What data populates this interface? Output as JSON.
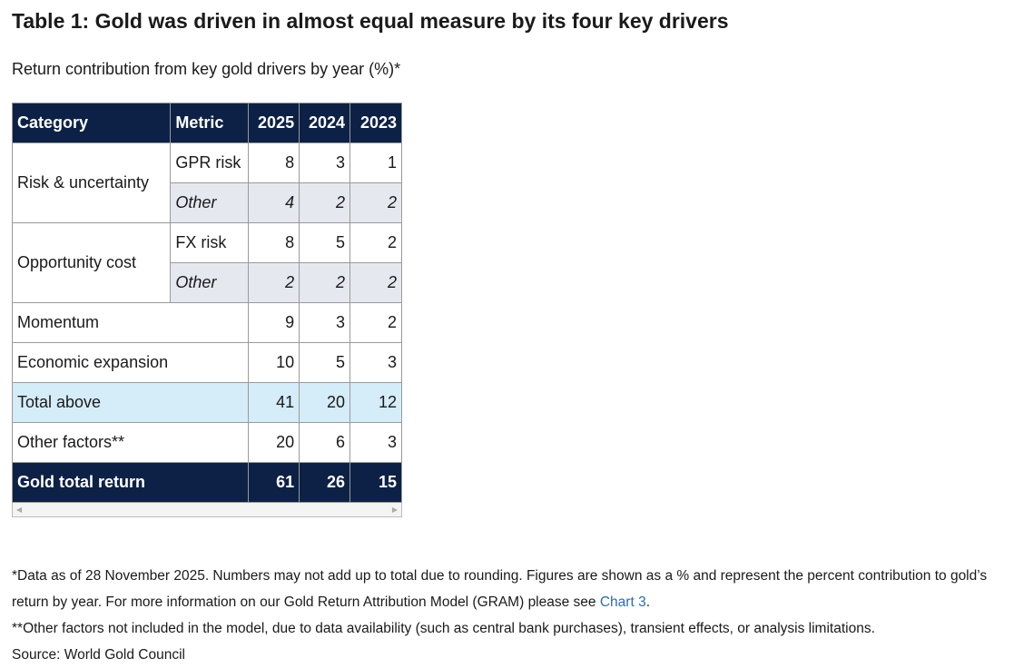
{
  "header": {
    "title": "Table 1: Gold was driven in almost equal measure by its four key drivers",
    "subtitle": "Return contribution from key gold drivers by year (%)*"
  },
  "table": {
    "columns": [
      "Category",
      "Metric",
      "2025",
      "2024",
      "2023"
    ],
    "rows": [
      {
        "category": "Risk & uncertainty",
        "items": [
          {
            "metric": "GPR risk",
            "values": [
              8,
              3,
              1
            ]
          },
          {
            "metric": "Other",
            "values": [
              4,
              2,
              2
            ]
          }
        ]
      },
      {
        "category": "Opportunity cost",
        "items": [
          {
            "metric": "FX risk",
            "values": [
              8,
              5,
              2
            ]
          },
          {
            "metric": "Other",
            "values": [
              2,
              2,
              2
            ]
          }
        ]
      },
      {
        "category": "Momentum",
        "values": [
          9,
          3,
          2
        ]
      },
      {
        "category": "Economic expansion",
        "values": [
          10,
          5,
          3
        ]
      },
      {
        "category": "Total above",
        "values": [
          41,
          20,
          12
        ]
      },
      {
        "category": "Other factors**",
        "values": [
          20,
          6,
          3
        ]
      },
      {
        "category": "Gold total return",
        "values": [
          61,
          26,
          15
        ]
      }
    ]
  },
  "footnotes": {
    "note1": {
      "before": "*Data as of 28 November 2025. Numbers may not add up to total due to rounding. Figures are shown as a % and represent the percent contribution to gold’s return by year. For more information on our Gold Return Attribution Model (GRAM) please see ",
      "link": "Chart 3",
      "after": "."
    },
    "note2": "**Other factors not included in the model, due to data availability (such as central bank purchases), transient effects, or analysis limitations.",
    "source": "Source: World Gold Council"
  }
}
